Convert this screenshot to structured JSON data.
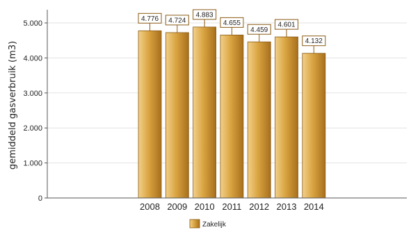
{
  "chart_data": {
    "type": "bar",
    "categories": [
      "2008",
      "2009",
      "2010",
      "2011",
      "2012",
      "2013",
      "2014"
    ],
    "series": [
      {
        "name": "Zakelijk",
        "values": [
          4776,
          4724,
          4883,
          4655,
          4459,
          4601,
          4132
        ],
        "data_labels": [
          "4.776",
          "4.724",
          "4.883",
          "4.655",
          "4.459",
          "4.601",
          "4.132"
        ]
      }
    ],
    "ylabel": "gemiddeld gasverbruik (m3)",
    "xlabel": "",
    "ylim": [
      0,
      5000
    ],
    "yticks": [
      0,
      1000,
      2000,
      3000,
      4000,
      5000
    ],
    "ytick_labels": [
      "0",
      "1.000",
      "2.000",
      "3.000",
      "4.000",
      "5.000"
    ],
    "grid": true,
    "error_bars": true,
    "legend_position": "bottom-center",
    "colors": {
      "bar_light": "#f2d08a",
      "bar_mid": "#d9a441",
      "bar_dark": "#a86f1c",
      "bar_edge": "#8a5a14",
      "label_border": "#8a5a14",
      "gridline": "#e3e3e3",
      "axis": "#555555"
    }
  }
}
